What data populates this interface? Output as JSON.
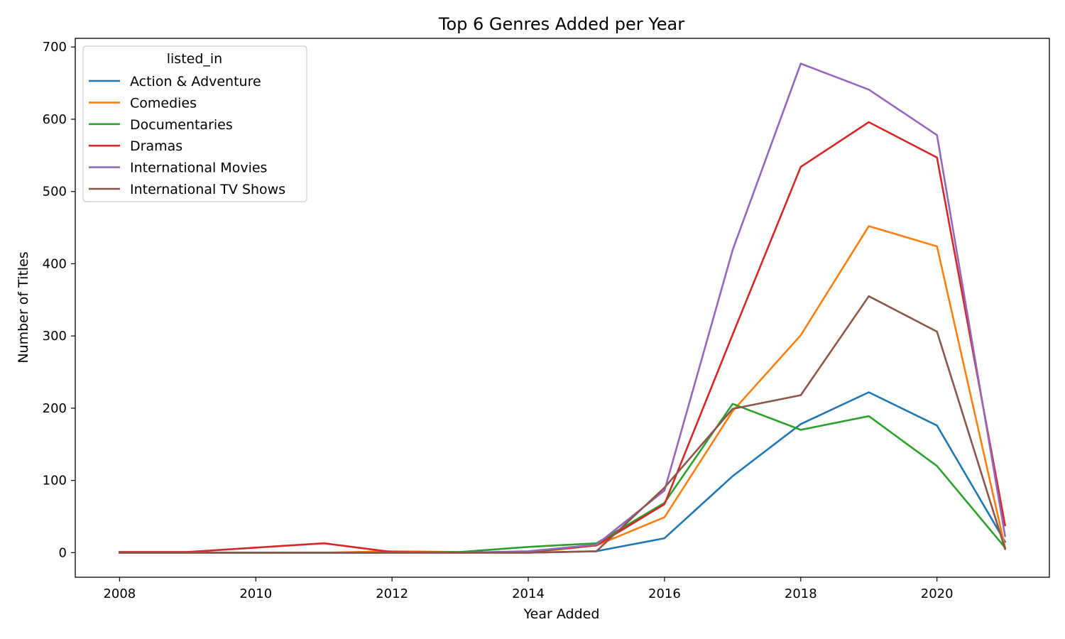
{
  "chart_data": {
    "type": "line",
    "title": "Top 6 Genres Added per Year",
    "xlabel": "Year Added",
    "ylabel": "Number of Titles",
    "xlim": [
      2007.35,
      2021.65
    ],
    "ylim": [
      -34,
      712
    ],
    "xticks": [
      2008,
      2010,
      2012,
      2014,
      2016,
      2018,
      2020
    ],
    "yticks": [
      0,
      100,
      200,
      300,
      400,
      500,
      600,
      700
    ],
    "grid": false,
    "legend": {
      "title": "listed_in",
      "position": "top-left"
    },
    "x": [
      2008,
      2009,
      2010,
      2011,
      2012,
      2013,
      2014,
      2015,
      2016,
      2017,
      2018,
      2019,
      2020,
      2021
    ],
    "series": [
      {
        "name": "Action & Adventure",
        "color": "#1f77b4",
        "values": [
          0,
          0,
          0,
          0,
          0,
          0,
          0,
          2,
          20,
          106,
          178,
          222,
          176,
          15
        ]
      },
      {
        "name": "Comedies",
        "color": "#ff7f0e",
        "values": [
          0,
          0,
          0,
          0,
          2,
          1,
          0,
          10,
          49,
          196,
          301,
          452,
          424,
          7
        ]
      },
      {
        "name": "Documentaries",
        "color": "#2ca02c",
        "values": [
          0,
          0,
          0,
          0,
          0,
          1,
          8,
          13,
          69,
          206,
          170,
          189,
          120,
          7
        ]
      },
      {
        "name": "Dramas",
        "color": "#d62728",
        "values": [
          1,
          1,
          7,
          13,
          1,
          0,
          1,
          10,
          67,
          302,
          534,
          596,
          547,
          38
        ]
      },
      {
        "name": "International Movies",
        "color": "#9467bd",
        "values": [
          0,
          0,
          0,
          0,
          0,
          0,
          2,
          11,
          86,
          419,
          677,
          641,
          578,
          23
        ]
      },
      {
        "name": "International TV Shows",
        "color": "#8c564b",
        "values": [
          0,
          0,
          0,
          0,
          0,
          0,
          0,
          2,
          90,
          199,
          218,
          355,
          306,
          5
        ]
      }
    ]
  }
}
